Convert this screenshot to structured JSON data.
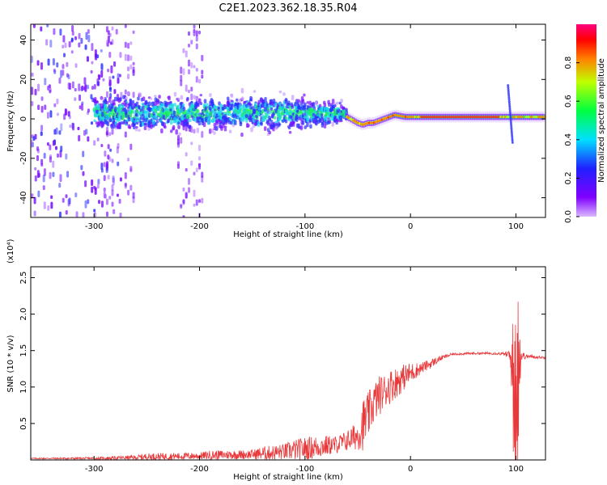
{
  "title": "C2E1.2023.362.18.35.R04",
  "chart_data": [
    {
      "type": "heatmap",
      "xlabel": "Height of straight line (km)",
      "ylabel": "Frequency (Hz)",
      "xlim": [
        -360,
        128
      ],
      "ylim": [
        -50,
        48
      ],
      "x_ticks": [
        -300,
        -200,
        -100,
        0,
        100
      ],
      "x_tick_labels": [
        "-300",
        "-200",
        "-100",
        "0",
        "100"
      ],
      "y_ticks": [
        -40,
        -20,
        0,
        20,
        40
      ],
      "y_tick_labels": [
        "-40",
        "-20",
        "0",
        "20",
        "40"
      ],
      "colorbar": {
        "label": "Normalized spectral amplitude",
        "range": [
          0,
          1
        ],
        "ticks": [
          0.0,
          0.2,
          0.4,
          0.6,
          0.8
        ],
        "tick_labels": [
          "0.0",
          "0.2",
          "0.4",
          "0.6",
          "0.8"
        ]
      },
      "ridge": {
        "x": [
          -110,
          -90,
          -75,
          -60,
          -50,
          -45,
          -40,
          -35,
          -25,
          -15,
          -5,
          0,
          20,
          60,
          90,
          100,
          128
        ],
        "freq": [
          3,
          3,
          3,
          1,
          -2,
          -3,
          -2,
          -2,
          0,
          2,
          1,
          1,
          1,
          1,
          1,
          1,
          1
        ]
      },
      "grid": false
    },
    {
      "type": "line",
      "xlabel": "Height of straight line (km)",
      "ylabel": "SNR (10 * v/v)",
      "y_multiplier": "(x10⁴)",
      "xlim": [
        -360,
        128
      ],
      "ylim": [
        0,
        2.65
      ],
      "x_ticks": [
        -300,
        -200,
        -100,
        0,
        100
      ],
      "x_tick_labels": [
        "-300",
        "-200",
        "-100",
        "0",
        "100"
      ],
      "y_ticks": [
        0.5,
        1.0,
        1.5,
        2.0,
        2.5
      ],
      "y_tick_labels": [
        "0.5",
        "1.0",
        "1.5",
        "2.0",
        "2.5"
      ],
      "series": [
        {
          "color": "#e8383a",
          "envelope_x": [
            -360,
            -300,
            -260,
            -250,
            -200,
            -190,
            -150,
            -140,
            -120,
            -110,
            -100,
            -90,
            -80,
            -70,
            -60,
            -50,
            -45,
            -40,
            -35,
            -30,
            -25,
            -20,
            -10,
            0,
            10,
            20,
            30,
            40,
            60,
            80,
            90,
            95,
            98,
            100,
            102,
            105,
            110,
            128
          ],
          "envelope_mean": [
            0.02,
            0.02,
            0.03,
            0.04,
            0.05,
            0.06,
            0.07,
            0.08,
            0.1,
            0.12,
            0.14,
            0.16,
            0.18,
            0.2,
            0.25,
            0.32,
            0.45,
            0.58,
            0.75,
            0.85,
            0.92,
            0.98,
            1.08,
            1.18,
            1.25,
            1.32,
            1.4,
            1.45,
            1.46,
            1.46,
            1.45,
            1.4,
            0.8,
            0.4,
            1.1,
            1.42,
            1.42,
            1.4
          ],
          "envelope_noise": [
            0.01,
            0.02,
            0.04,
            0.06,
            0.06,
            0.08,
            0.08,
            0.12,
            0.14,
            0.18,
            0.2,
            0.2,
            0.18,
            0.15,
            0.18,
            0.25,
            0.45,
            0.4,
            0.35,
            0.35,
            0.3,
            0.3,
            0.25,
            0.18,
            0.1,
            0.08,
            0.04,
            0.02,
            0.02,
            0.02,
            0.03,
            0.2,
            1.0,
            1.2,
            0.9,
            0.1,
            0.03,
            0.02
          ]
        }
      ],
      "grid": false
    }
  ]
}
